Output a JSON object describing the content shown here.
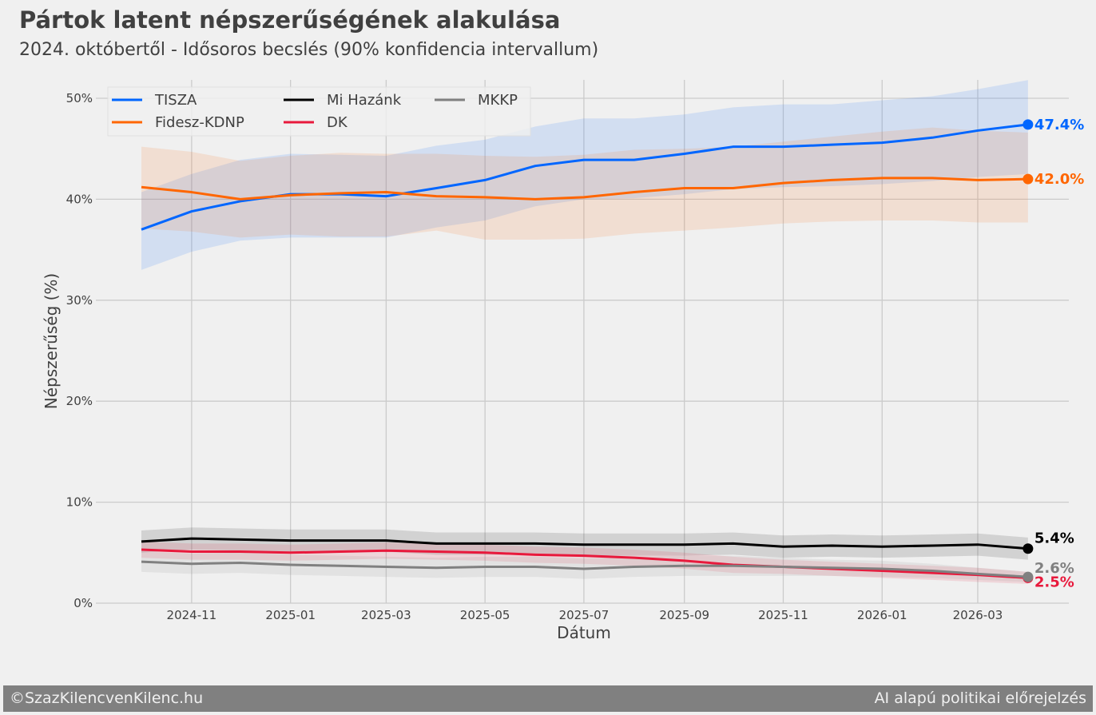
{
  "title": "Pártok latent népszerűségének alakulása",
  "subtitle": "2024. októbertől - Idősoros becslés (90% konfidencia intervallum)",
  "footer": {
    "left": "©SzazKilencvenKilenc.hu",
    "right": "AI alapú politikai előrejelzés"
  },
  "chart_data": {
    "type": "line",
    "xlabel": "Dátum",
    "ylabel": "Népszerűség (%)",
    "ylim": [
      0,
      52
    ],
    "yticks": [
      0,
      10,
      20,
      30,
      40,
      50
    ],
    "ytick_labels": [
      "0%",
      "10%",
      "20%",
      "30%",
      "40%",
      "50%"
    ],
    "xticks": [
      "2024-11",
      "2025-01",
      "2025-03",
      "2025-05",
      "2025-07",
      "2025-09",
      "2025-11",
      "2026-01",
      "2026-03"
    ],
    "xlim": [
      "2024-09-10",
      "2026-04-26"
    ],
    "grid": true,
    "legend": "top-left",
    "x": [
      "2024-10-01",
      "2024-11-01",
      "2024-12-01",
      "2025-01-01",
      "2025-02-01",
      "2025-03-01",
      "2025-04-01",
      "2025-05-01",
      "2025-06-01",
      "2025-07-01",
      "2025-08-01",
      "2025-09-01",
      "2025-10-01",
      "2025-11-01",
      "2025-12-01",
      "2026-01-01",
      "2026-02-01",
      "2026-03-01",
      "2026-04-01"
    ],
    "series": [
      {
        "name": "TISZA",
        "color": "#0066ff",
        "end_label": "47.4%",
        "values": [
          37.0,
          38.8,
          39.8,
          40.5,
          40.5,
          40.3,
          41.1,
          41.9,
          43.3,
          43.9,
          43.9,
          44.5,
          45.2,
          45.2,
          45.4,
          45.6,
          46.1,
          46.8,
          47.4
        ],
        "lower": [
          33.0,
          34.8,
          35.9,
          36.2,
          36.2,
          36.2,
          37.2,
          37.9,
          39.3,
          40.0,
          40.1,
          40.5,
          41.0,
          41.2,
          41.3,
          41.5,
          41.8,
          42.2,
          42.5
        ],
        "upper": [
          40.7,
          42.5,
          43.9,
          44.5,
          44.4,
          44.3,
          45.3,
          45.9,
          47.2,
          48.0,
          48.0,
          48.4,
          49.1,
          49.4,
          49.4,
          49.8,
          50.2,
          50.9,
          51.8
        ]
      },
      {
        "name": "Fidesz-KDNP",
        "color": "#ff6600",
        "end_label": "42.0%",
        "values": [
          41.2,
          40.7,
          40.0,
          40.4,
          40.6,
          40.7,
          40.3,
          40.2,
          40.0,
          40.2,
          40.7,
          41.1,
          41.1,
          41.6,
          41.9,
          42.1,
          42.1,
          41.9,
          42.0
        ],
        "lower": [
          37.1,
          36.8,
          36.2,
          36.5,
          36.3,
          36.3,
          36.9,
          36.0,
          36.0,
          36.1,
          36.6,
          36.9,
          37.2,
          37.6,
          37.8,
          37.9,
          37.9,
          37.7,
          37.7
        ],
        "upper": [
          45.2,
          44.7,
          43.8,
          44.3,
          44.6,
          44.5,
          44.5,
          44.3,
          44.2,
          44.4,
          44.9,
          45.0,
          45.2,
          45.7,
          46.2,
          46.7,
          47.1,
          46.8,
          46.6
        ]
      },
      {
        "name": "Mi Hazánk",
        "color": "#000000",
        "end_label": "5.4%",
        "values": [
          6.1,
          6.4,
          6.3,
          6.2,
          6.2,
          6.2,
          5.9,
          5.9,
          5.9,
          5.8,
          5.8,
          5.8,
          5.9,
          5.6,
          5.7,
          5.6,
          5.7,
          5.8,
          5.4
        ],
        "lower": [
          5.0,
          5.3,
          5.2,
          5.1,
          5.1,
          5.1,
          4.8,
          4.8,
          4.8,
          4.7,
          4.7,
          4.7,
          4.8,
          4.5,
          4.6,
          4.5,
          4.6,
          4.7,
          4.3
        ],
        "upper": [
          7.2,
          7.5,
          7.4,
          7.3,
          7.3,
          7.3,
          7.0,
          7.0,
          7.0,
          6.9,
          6.9,
          6.9,
          7.0,
          6.7,
          6.8,
          6.7,
          6.8,
          6.9,
          6.5
        ]
      },
      {
        "name": "DK",
        "color": "#e8193c",
        "end_label": "2.5%",
        "values": [
          5.3,
          5.1,
          5.1,
          5.0,
          5.1,
          5.2,
          5.1,
          5.0,
          4.8,
          4.7,
          4.5,
          4.2,
          3.8,
          3.6,
          3.4,
          3.2,
          3.0,
          2.8,
          2.5
        ],
        "lower": [
          4.5,
          4.3,
          4.3,
          4.2,
          4.3,
          4.4,
          4.3,
          4.2,
          4.0,
          3.9,
          3.7,
          3.4,
          3.0,
          2.9,
          2.7,
          2.5,
          2.3,
          2.1,
          1.9
        ],
        "upper": [
          6.1,
          5.9,
          5.9,
          5.8,
          5.9,
          6.0,
          5.9,
          5.8,
          5.6,
          5.5,
          5.3,
          5.0,
          4.6,
          4.3,
          4.1,
          3.9,
          3.7,
          3.5,
          3.1
        ]
      },
      {
        "name": "MKKP",
        "color": "#808080",
        "end_label": "2.6%",
        "values": [
          4.1,
          3.9,
          4.0,
          3.8,
          3.7,
          3.6,
          3.5,
          3.6,
          3.6,
          3.4,
          3.6,
          3.7,
          3.7,
          3.6,
          3.5,
          3.4,
          3.2,
          2.9,
          2.6
        ],
        "lower": [
          3.1,
          2.9,
          3.0,
          2.8,
          2.7,
          2.6,
          2.5,
          2.6,
          2.6,
          2.4,
          2.6,
          2.7,
          2.7,
          2.7,
          2.7,
          2.6,
          2.5,
          2.3,
          2.1
        ],
        "upper": [
          5.1,
          4.9,
          5.0,
          4.8,
          4.7,
          4.6,
          4.5,
          4.6,
          4.6,
          4.4,
          4.6,
          4.7,
          4.7,
          4.5,
          4.3,
          4.2,
          3.9,
          3.5,
          3.1
        ]
      }
    ]
  }
}
